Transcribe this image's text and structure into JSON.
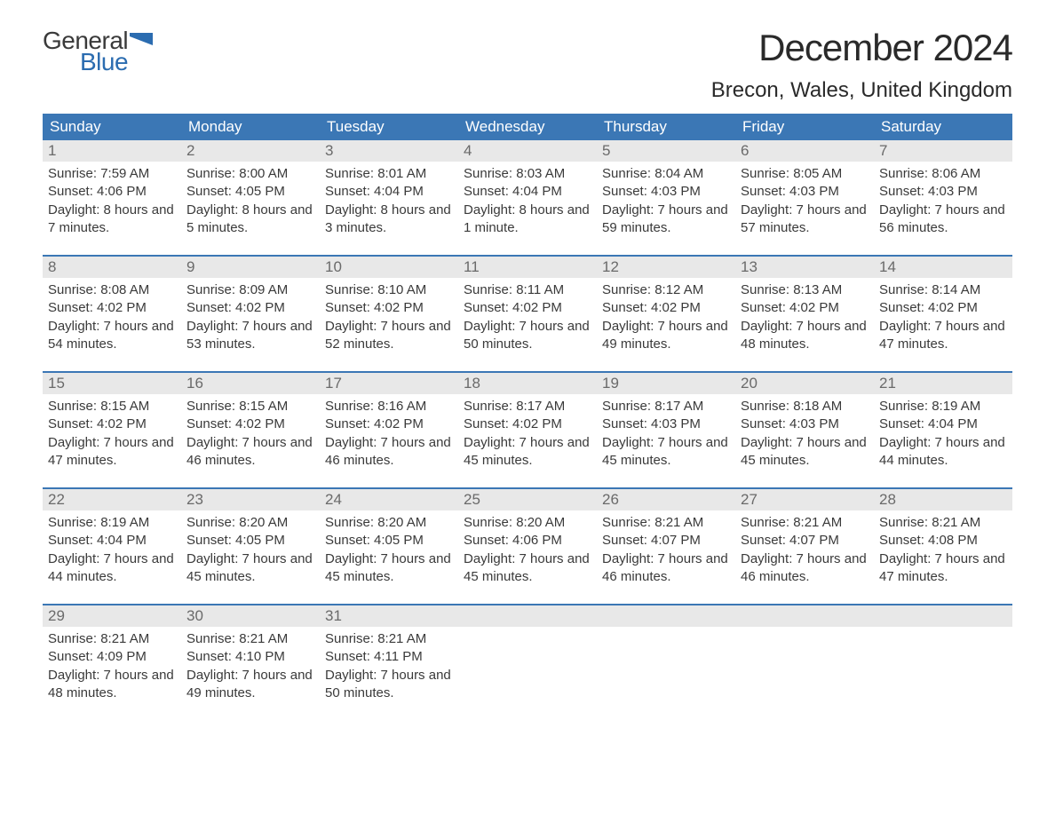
{
  "logo": {
    "line1": "General",
    "line2": "Blue",
    "flag_color": "#2b6cb0"
  },
  "title": "December 2024",
  "location": "Brecon, Wales, United Kingdom",
  "colors": {
    "header_bg": "#3b77b5",
    "header_text": "#ffffff",
    "daynum_bg": "#e8e8e8",
    "daynum_text": "#6a6a6a",
    "body_text": "#3a3a3a",
    "rule": "#3b77b5",
    "page_bg": "#ffffff"
  },
  "day_headers": [
    "Sunday",
    "Monday",
    "Tuesday",
    "Wednesday",
    "Thursday",
    "Friday",
    "Saturday"
  ],
  "weeks": [
    [
      {
        "n": "1",
        "sunrise": "7:59 AM",
        "sunset": "4:06 PM",
        "daylight": "8 hours and 7 minutes."
      },
      {
        "n": "2",
        "sunrise": "8:00 AM",
        "sunset": "4:05 PM",
        "daylight": "8 hours and 5 minutes."
      },
      {
        "n": "3",
        "sunrise": "8:01 AM",
        "sunset": "4:04 PM",
        "daylight": "8 hours and 3 minutes."
      },
      {
        "n": "4",
        "sunrise": "8:03 AM",
        "sunset": "4:04 PM",
        "daylight": "8 hours and 1 minute."
      },
      {
        "n": "5",
        "sunrise": "8:04 AM",
        "sunset": "4:03 PM",
        "daylight": "7 hours and 59 minutes."
      },
      {
        "n": "6",
        "sunrise": "8:05 AM",
        "sunset": "4:03 PM",
        "daylight": "7 hours and 57 minutes."
      },
      {
        "n": "7",
        "sunrise": "8:06 AM",
        "sunset": "4:03 PM",
        "daylight": "7 hours and 56 minutes."
      }
    ],
    [
      {
        "n": "8",
        "sunrise": "8:08 AM",
        "sunset": "4:02 PM",
        "daylight": "7 hours and 54 minutes."
      },
      {
        "n": "9",
        "sunrise": "8:09 AM",
        "sunset": "4:02 PM",
        "daylight": "7 hours and 53 minutes."
      },
      {
        "n": "10",
        "sunrise": "8:10 AM",
        "sunset": "4:02 PM",
        "daylight": "7 hours and 52 minutes."
      },
      {
        "n": "11",
        "sunrise": "8:11 AM",
        "sunset": "4:02 PM",
        "daylight": "7 hours and 50 minutes."
      },
      {
        "n": "12",
        "sunrise": "8:12 AM",
        "sunset": "4:02 PM",
        "daylight": "7 hours and 49 minutes."
      },
      {
        "n": "13",
        "sunrise": "8:13 AM",
        "sunset": "4:02 PM",
        "daylight": "7 hours and 48 minutes."
      },
      {
        "n": "14",
        "sunrise": "8:14 AM",
        "sunset": "4:02 PM",
        "daylight": "7 hours and 47 minutes."
      }
    ],
    [
      {
        "n": "15",
        "sunrise": "8:15 AM",
        "sunset": "4:02 PM",
        "daylight": "7 hours and 47 minutes."
      },
      {
        "n": "16",
        "sunrise": "8:15 AM",
        "sunset": "4:02 PM",
        "daylight": "7 hours and 46 minutes."
      },
      {
        "n": "17",
        "sunrise": "8:16 AM",
        "sunset": "4:02 PM",
        "daylight": "7 hours and 46 minutes."
      },
      {
        "n": "18",
        "sunrise": "8:17 AM",
        "sunset": "4:02 PM",
        "daylight": "7 hours and 45 minutes."
      },
      {
        "n": "19",
        "sunrise": "8:17 AM",
        "sunset": "4:03 PM",
        "daylight": "7 hours and 45 minutes."
      },
      {
        "n": "20",
        "sunrise": "8:18 AM",
        "sunset": "4:03 PM",
        "daylight": "7 hours and 45 minutes."
      },
      {
        "n": "21",
        "sunrise": "8:19 AM",
        "sunset": "4:04 PM",
        "daylight": "7 hours and 44 minutes."
      }
    ],
    [
      {
        "n": "22",
        "sunrise": "8:19 AM",
        "sunset": "4:04 PM",
        "daylight": "7 hours and 44 minutes."
      },
      {
        "n": "23",
        "sunrise": "8:20 AM",
        "sunset": "4:05 PM",
        "daylight": "7 hours and 45 minutes."
      },
      {
        "n": "24",
        "sunrise": "8:20 AM",
        "sunset": "4:05 PM",
        "daylight": "7 hours and 45 minutes."
      },
      {
        "n": "25",
        "sunrise": "8:20 AM",
        "sunset": "4:06 PM",
        "daylight": "7 hours and 45 minutes."
      },
      {
        "n": "26",
        "sunrise": "8:21 AM",
        "sunset": "4:07 PM",
        "daylight": "7 hours and 46 minutes."
      },
      {
        "n": "27",
        "sunrise": "8:21 AM",
        "sunset": "4:07 PM",
        "daylight": "7 hours and 46 minutes."
      },
      {
        "n": "28",
        "sunrise": "8:21 AM",
        "sunset": "4:08 PM",
        "daylight": "7 hours and 47 minutes."
      }
    ],
    [
      {
        "n": "29",
        "sunrise": "8:21 AM",
        "sunset": "4:09 PM",
        "daylight": "7 hours and 48 minutes."
      },
      {
        "n": "30",
        "sunrise": "8:21 AM",
        "sunset": "4:10 PM",
        "daylight": "7 hours and 49 minutes."
      },
      {
        "n": "31",
        "sunrise": "8:21 AM",
        "sunset": "4:11 PM",
        "daylight": "7 hours and 50 minutes."
      },
      null,
      null,
      null,
      null
    ]
  ],
  "labels": {
    "sunrise": "Sunrise: ",
    "sunset": "Sunset: ",
    "daylight": "Daylight: "
  }
}
